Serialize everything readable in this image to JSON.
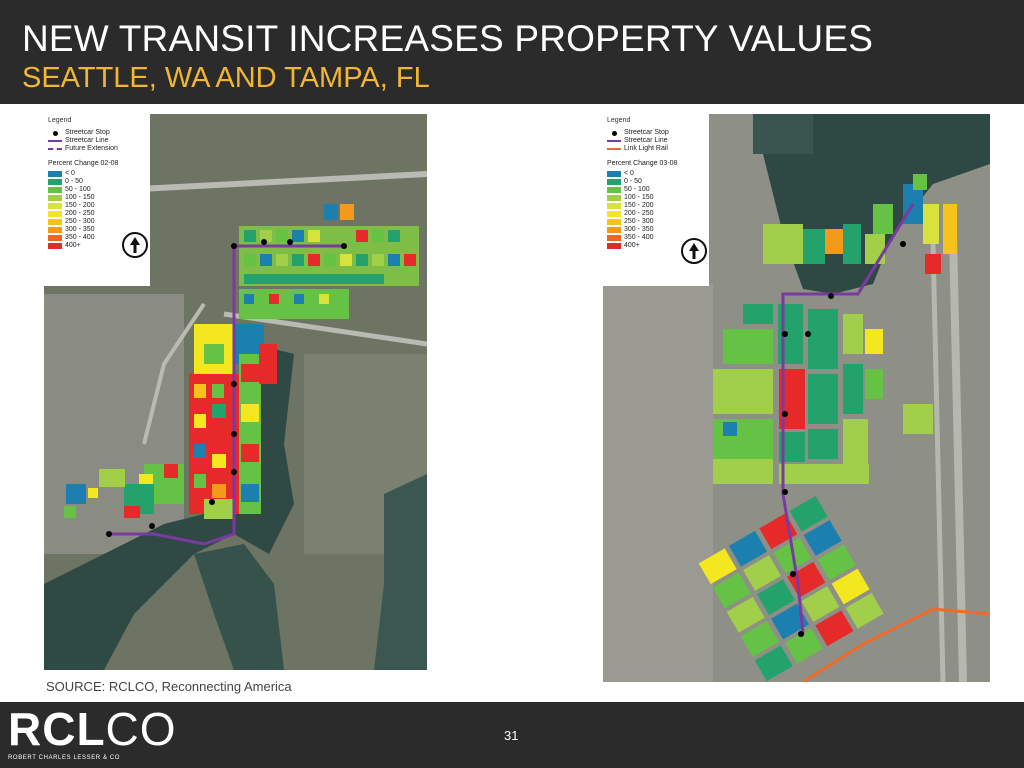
{
  "slide": {
    "title": "NEW TRANSIT INCREASES PROPERTY VALUES",
    "subtitle": "SEATTLE, WA AND TAMPA, FL",
    "source": "SOURCE: RCLCO, Reconnecting America",
    "page_number": "31",
    "logo": {
      "mark_bold": "RCL",
      "mark_thin": "CO",
      "tagline": "ROBERT CHARLES LESSER & CO"
    }
  },
  "colors": {
    "header_bg": "#2b2b2b",
    "title": "#ffffff",
    "subtitle": "#f2b535",
    "streetcar_line": "#7a3aa0",
    "light_rail": "#f06a28",
    "streets": "#a8a8a0",
    "water": "#2f4a44"
  },
  "maps": {
    "left": {
      "legend_title": "Legend",
      "transit_items": [
        {
          "symbol": "stop",
          "label": "Streetcar Stop"
        },
        {
          "symbol": "line",
          "label": "Streetcar Line",
          "color": "#7a3aa0"
        },
        {
          "symbol": "dashed",
          "label": "Future Extension",
          "color": "#7a3aa0"
        }
      ],
      "classes_title": "Percent Change 02-08",
      "classes": [
        {
          "label": "< 0",
          "color": "#1b7fb0"
        },
        {
          "label": "0 - 50",
          "color": "#23a36b"
        },
        {
          "label": "50 - 100",
          "color": "#66c245"
        },
        {
          "label": "100 - 150",
          "color": "#a2cf4a"
        },
        {
          "label": "150 - 200",
          "color": "#d8e23c"
        },
        {
          "label": "200 - 250",
          "color": "#f3e71f"
        },
        {
          "label": "250 - 300",
          "color": "#f6c21c"
        },
        {
          "label": "300 - 350",
          "color": "#f39a1c"
        },
        {
          "label": "350 - 400",
          "color": "#ef6324"
        },
        {
          "label": "400+",
          "color": "#e62a2a"
        }
      ]
    },
    "right": {
      "legend_title": "Legend",
      "transit_items": [
        {
          "symbol": "stop",
          "label": "Streetcar Stop"
        },
        {
          "symbol": "line",
          "label": "Streetcar Line",
          "color": "#7a3aa0"
        },
        {
          "symbol": "line",
          "label": "Link Light Rail",
          "color": "#f06a28"
        }
      ],
      "classes_title": "Percent Change 03-08",
      "classes": [
        {
          "label": "< 0",
          "color": "#1b7fb0"
        },
        {
          "label": "0 - 50",
          "color": "#23a36b"
        },
        {
          "label": "50 - 100",
          "color": "#66c245"
        },
        {
          "label": "100 - 150",
          "color": "#a2cf4a"
        },
        {
          "label": "150 - 200",
          "color": "#d8e23c"
        },
        {
          "label": "200 - 250",
          "color": "#f3e71f"
        },
        {
          "label": "250 - 300",
          "color": "#f6c21c"
        },
        {
          "label": "300 - 350",
          "color": "#f39a1c"
        },
        {
          "label": "350 - 400",
          "color": "#ef6324"
        },
        {
          "label": "400+",
          "color": "#e62a2a"
        }
      ]
    }
  }
}
